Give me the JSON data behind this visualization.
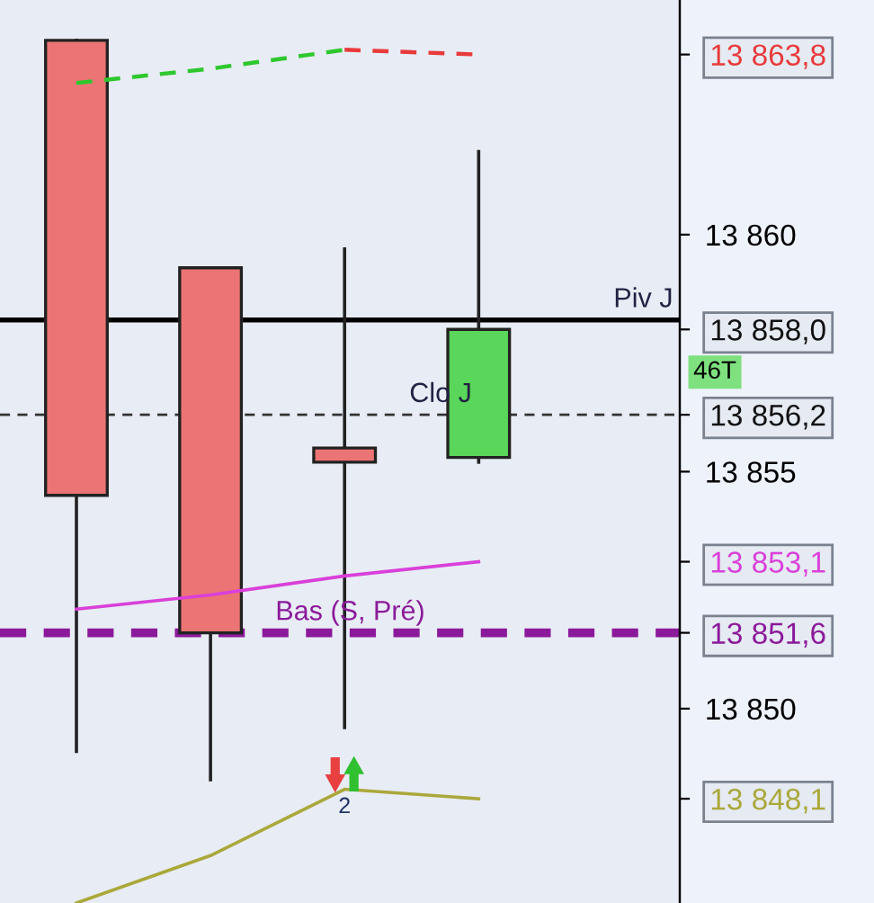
{
  "chart_data": {
    "type": "candlestick",
    "categories": [
      null,
      null,
      null,
      null
    ],
    "ohlc": [
      [
        13864.1,
        13864.1,
        13849.1,
        13854.5
      ],
      [
        13859.3,
        13859.3,
        13848.5,
        13851.6
      ],
      [
        13855.5,
        13859.7,
        13849.6,
        13855.2
      ],
      [
        13855.3,
        13861.75,
        13855.2,
        13858.0
      ]
    ],
    "series": [
      {
        "type": "line",
        "color": "#2ec82e",
        "line_style": "dashed",
        "values": [
          13863.2,
          13863.5,
          13863.9,
          null
        ]
      },
      {
        "type": "line",
        "color": "#e83a3a",
        "line_style": "dashed",
        "values": [
          null,
          null,
          13863.9,
          13863.8
        ]
      },
      {
        "type": "line",
        "color": "#d940d9",
        "line_style": "solid",
        "values": [
          13852.1,
          13852.4,
          13852.8,
          13853.1
        ]
      },
      {
        "type": "line",
        "color": "#aaa83a",
        "line_style": "solid",
        "values": [
          13845.9,
          13846.9,
          13848.3,
          13848.1
        ]
      }
    ],
    "ref_lines": [
      {
        "axis": "y",
        "value": 13858.2,
        "label": "Piv J",
        "color": "#000000",
        "line_style": "solid"
      },
      {
        "axis": "y",
        "value": 13856.2,
        "label": "Clo J",
        "color": "#333333",
        "line_style": "dashed"
      },
      {
        "axis": "y",
        "value": 13851.6,
        "label": "Bas (S, Pré)",
        "color": "#8b1a9b",
        "line_style": "dotted"
      }
    ],
    "annotations": [
      "46T",
      "2"
    ],
    "ylim": [
      13845.9,
      13864.95
    ],
    "yticks": [
      {
        "value": 13850,
        "label": "13 850"
      },
      {
        "value": 13855,
        "label": "13 855"
      },
      {
        "value": 13860,
        "label": "13 860"
      }
    ],
    "y2lim": [
      13845.9,
      13864.95
    ],
    "y2ticks": [
      {
        "value": 13863.8,
        "label": "13 863,8"
      },
      {
        "value": 13858.0,
        "label": "13 858,0"
      },
      {
        "value": 13856.2,
        "label": "13 856,2"
      },
      {
        "value": 13853.1,
        "label": "13 853,1"
      },
      {
        "value": 13851.6,
        "label": "13 851,6"
      },
      {
        "value": 13848.1,
        "label": "13 848,1"
      }
    ],
    "tick_labels": "y",
    "grid": false
  }
}
